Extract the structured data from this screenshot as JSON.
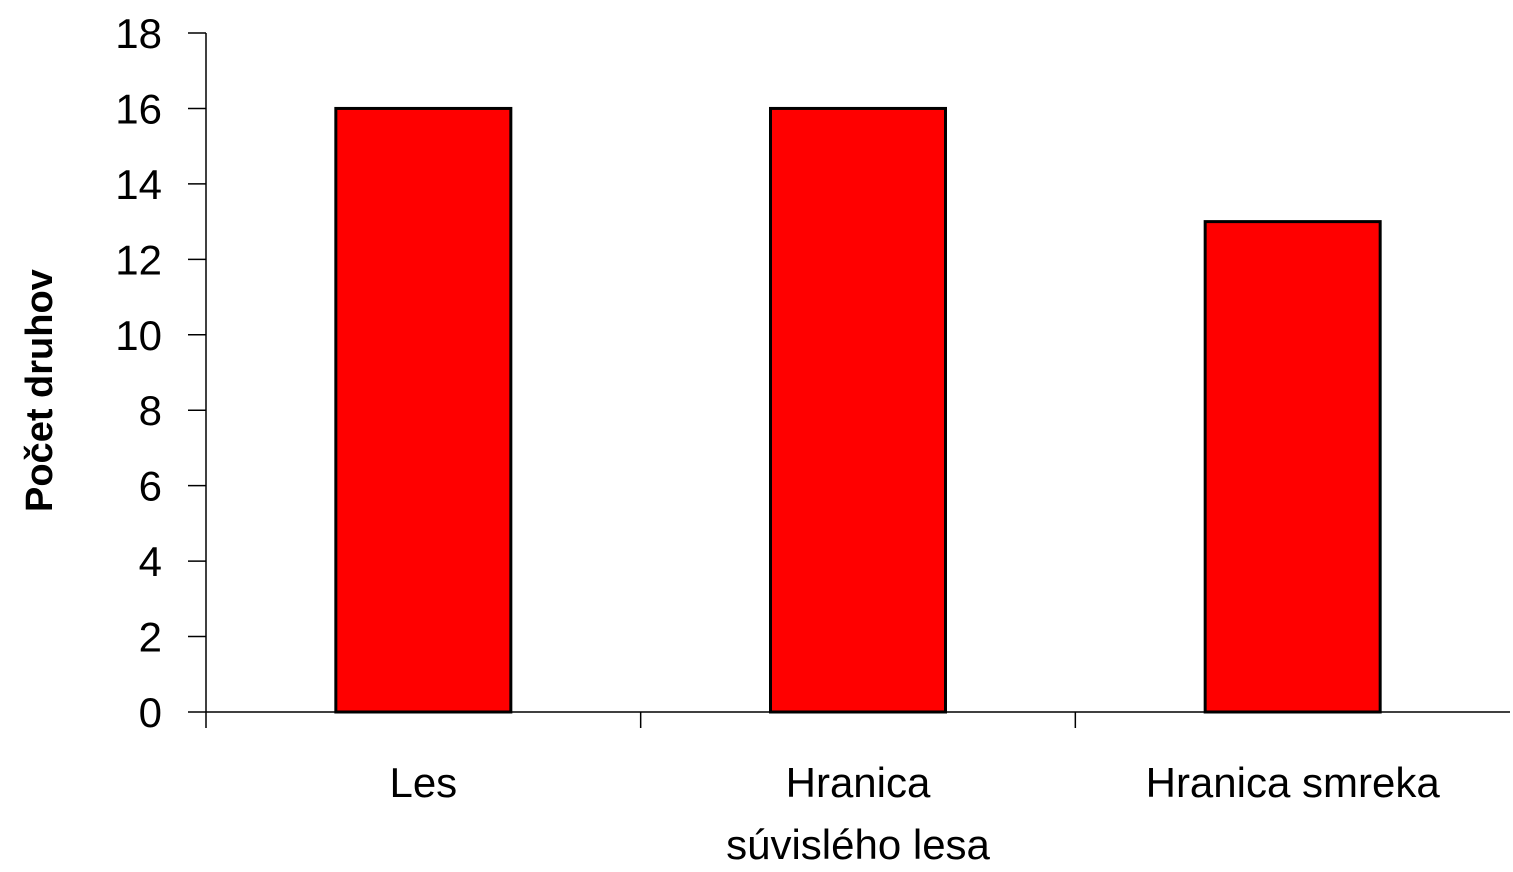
{
  "chart_data": {
    "type": "bar",
    "title": "",
    "xlabel": "",
    "ylabel": "Počet druhov",
    "categories": [
      [
        "Les"
      ],
      [
        "Hranica",
        "súvislého lesa"
      ],
      [
        "Hranica smreka"
      ]
    ],
    "values": [
      16,
      16,
      13
    ],
    "ylim": [
      0,
      18
    ],
    "yticks": [
      0,
      2,
      4,
      6,
      8,
      10,
      12,
      14,
      16,
      18
    ],
    "grid": false,
    "legend": "none",
    "colors": {
      "bar_fill": "#ff0000",
      "bar_stroke": "#000000",
      "axis": "#000000",
      "text": "#000000"
    }
  }
}
